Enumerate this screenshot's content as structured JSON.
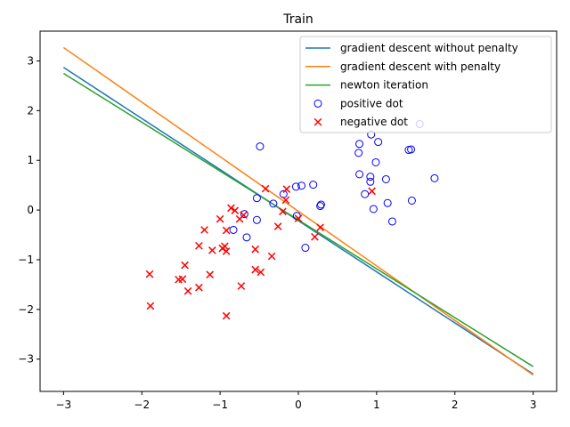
{
  "chart_data": {
    "type": "scatter",
    "title": "Train",
    "xlabel": "",
    "ylabel": "",
    "xlim": [
      -3.3,
      3.3
    ],
    "ylim": [
      -3.65,
      3.6
    ],
    "xticks": [
      -3,
      -2,
      -1,
      0,
      1,
      2,
      3
    ],
    "yticks": [
      -3,
      -2,
      -1,
      0,
      1,
      2,
      3
    ],
    "xtick_labels": [
      "−3",
      "−2",
      "−1",
      "0",
      "1",
      "2",
      "3"
    ],
    "ytick_labels": [
      "−3",
      "−2",
      "−1",
      "0",
      "1",
      "2",
      "3"
    ],
    "grid": false,
    "legend_position": "top-right",
    "lines": [
      {
        "name": "gradient descent without penalty",
        "color": "#1f77b4",
        "x": [
          -3,
          3
        ],
        "y": [
          2.87,
          -3.3
        ]
      },
      {
        "name": "gradient descent with penalty",
        "color": "#ff7f0e",
        "x": [
          -3,
          3
        ],
        "y": [
          3.27,
          -3.32
        ]
      },
      {
        "name": "newton iteration",
        "color": "#2ca02c",
        "x": [
          -3,
          3
        ],
        "y": [
          2.75,
          -3.15
        ]
      }
    ],
    "series": [
      {
        "name": "positive dot",
        "marker": "circle",
        "color": "#0000ff",
        "points": [
          [
            1.55,
            1.73
          ],
          [
            0.93,
            1.52
          ],
          [
            0.78,
            1.33
          ],
          [
            1.02,
            1.37
          ],
          [
            0.77,
            1.15
          ],
          [
            1.41,
            1.21
          ],
          [
            1.44,
            1.22
          ],
          [
            -0.49,
            1.28
          ],
          [
            0.99,
            0.96
          ],
          [
            0.78,
            0.72
          ],
          [
            0.92,
            0.67
          ],
          [
            0.92,
            0.57
          ],
          [
            1.12,
            0.62
          ],
          [
            1.74,
            0.64
          ],
          [
            -0.03,
            0.47
          ],
          [
            0.04,
            0.49
          ],
          [
            0.19,
            0.51
          ],
          [
            0.85,
            0.32
          ],
          [
            -0.19,
            0.32
          ],
          [
            -0.53,
            0.24
          ],
          [
            1.14,
            0.14
          ],
          [
            1.45,
            0.19
          ],
          [
            -0.32,
            0.13
          ],
          [
            0.28,
            0.08
          ],
          [
            0.29,
            0.11
          ],
          [
            0.96,
            0.02
          ],
          [
            -0.69,
            -0.08
          ],
          [
            -0.02,
            -0.12
          ],
          [
            -0.53,
            -0.2
          ],
          [
            1.2,
            -0.23
          ],
          [
            -0.83,
            -0.4
          ],
          [
            -0.66,
            -0.55
          ],
          [
            0.09,
            -0.76
          ]
        ]
      },
      {
        "name": "negative dot",
        "marker": "x",
        "color": "#ff0000",
        "points": [
          [
            -0.42,
            0.43
          ],
          [
            -0.15,
            0.42
          ],
          [
            0.94,
            0.38
          ],
          [
            -0.16,
            0.2
          ],
          [
            -0.86,
            0.04
          ],
          [
            -0.81,
            -0.01
          ],
          [
            -0.2,
            -0.03
          ],
          [
            -0.7,
            -0.1
          ],
          [
            -0.75,
            -0.18
          ],
          [
            -1.0,
            -0.18
          ],
          [
            0.0,
            -0.17
          ],
          [
            -0.26,
            -0.33
          ],
          [
            0.28,
            -0.35
          ],
          [
            -1.2,
            -0.4
          ],
          [
            -0.92,
            -0.41
          ],
          [
            0.21,
            -0.54
          ],
          [
            -1.27,
            -0.72
          ],
          [
            -0.94,
            -0.73
          ],
          [
            -0.97,
            -0.77
          ],
          [
            -0.55,
            -0.79
          ],
          [
            -1.1,
            -0.81
          ],
          [
            -0.92,
            -0.83
          ],
          [
            -0.34,
            -0.93
          ],
          [
            -1.45,
            -1.11
          ],
          [
            -0.55,
            -1.2
          ],
          [
            -0.48,
            -1.25
          ],
          [
            -1.13,
            -1.3
          ],
          [
            -1.9,
            -1.29
          ],
          [
            -1.53,
            -1.4
          ],
          [
            -1.48,
            -1.39
          ],
          [
            -0.73,
            -1.53
          ],
          [
            -1.27,
            -1.56
          ],
          [
            -1.41,
            -1.63
          ],
          [
            -1.89,
            -1.93
          ],
          [
            -0.92,
            -2.13
          ]
        ]
      }
    ]
  }
}
